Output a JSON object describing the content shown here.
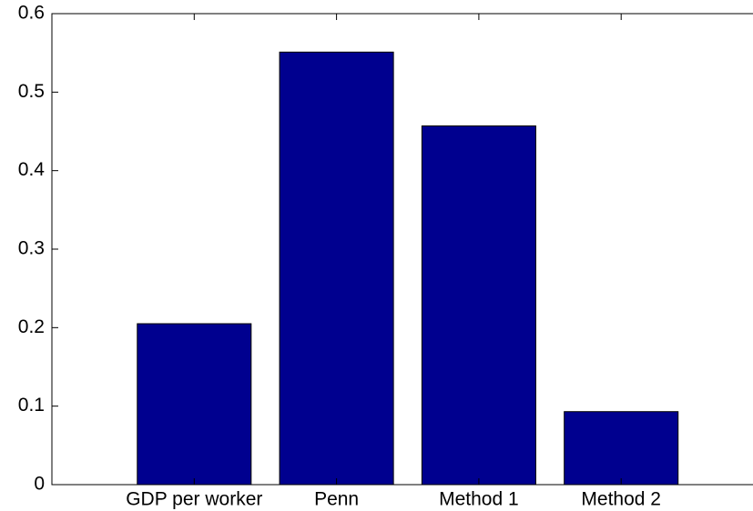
{
  "chart_data": {
    "type": "bar",
    "categories": [
      "GDP per worker",
      "Penn",
      "Method 1",
      "Method 2"
    ],
    "values": [
      0.205,
      0.551,
      0.457,
      0.093
    ],
    "color": "#00008f",
    "ylim": [
      0,
      0.6
    ],
    "yticks": [
      0,
      0.1,
      0.2,
      0.3,
      0.4,
      0.5,
      0.6
    ]
  }
}
